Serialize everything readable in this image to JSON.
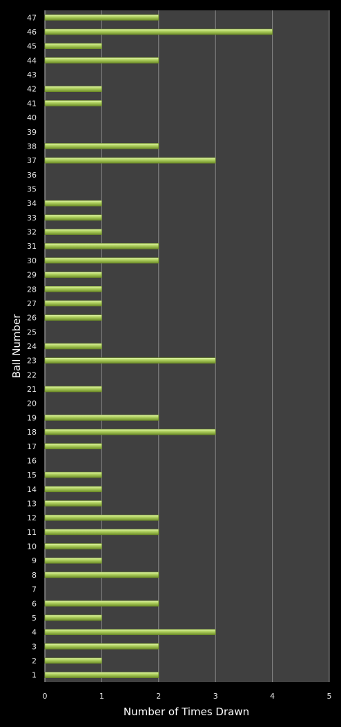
{
  "chart_data": {
    "type": "bar",
    "orientation": "horizontal",
    "xlabel": "Number of Times Drawn",
    "ylabel": "Ball Number",
    "xlim": [
      0,
      5
    ],
    "x_ticks": [
      "0",
      "1",
      "2",
      "3",
      "4",
      "5"
    ],
    "grid": true,
    "legend": "none",
    "colors": {
      "page_background": "#000000",
      "plot_background": "#404040",
      "gridline": "#8a8a8a",
      "bar_fill": "#b6d766",
      "bar_highlight": "#e4f5b0",
      "bar_shadow": "#6f8f28",
      "text": "#e6e6e6"
    },
    "categories": [
      "1",
      "2",
      "3",
      "4",
      "5",
      "6",
      "7",
      "8",
      "9",
      "10",
      "11",
      "12",
      "13",
      "14",
      "15",
      "16",
      "17",
      "18",
      "19",
      "20",
      "21",
      "22",
      "23",
      "24",
      "25",
      "26",
      "27",
      "28",
      "29",
      "30",
      "31",
      "32",
      "33",
      "34",
      "35",
      "36",
      "37",
      "38",
      "39",
      "40",
      "41",
      "42",
      "43",
      "44",
      "45",
      "46",
      "47"
    ],
    "values": [
      2,
      1,
      2,
      3,
      1,
      2,
      0,
      2,
      1,
      1,
      2,
      2,
      1,
      1,
      1,
      0,
      1,
      3,
      2,
      0,
      1,
      0,
      3,
      1,
      0,
      1,
      1,
      1,
      1,
      2,
      2,
      1,
      1,
      1,
      0,
      0,
      3,
      2,
      0,
      0,
      1,
      1,
      0,
      2,
      1,
      4,
      2
    ]
  }
}
